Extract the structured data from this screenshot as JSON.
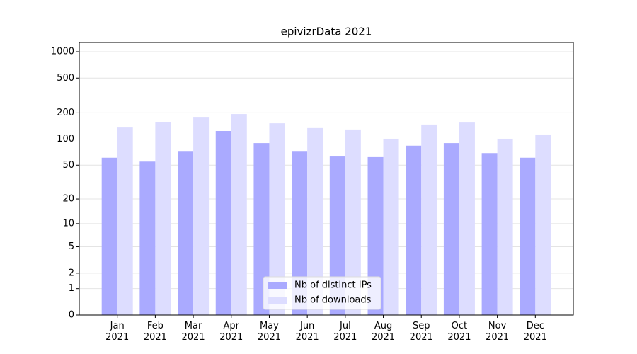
{
  "chart_data": {
    "type": "bar",
    "title": "epivizrData 2021",
    "categories": [
      "Jan\n2021",
      "Feb\n2021",
      "Mar\n2021",
      "Apr\n2021",
      "May\n2021",
      "Jun\n2021",
      "Jul\n2021",
      "Aug\n2021",
      "Sep\n2021",
      "Oct\n2021",
      "Nov\n2021",
      "Dec\n2021"
    ],
    "series": [
      {
        "name": "Nb of distinct IPs",
        "color": "#aaaaff",
        "values": [
          61,
          55,
          73,
          124,
          90,
          73,
          63,
          62,
          84,
          90,
          69,
          61
        ]
      },
      {
        "name": "Nb of downloads",
        "color": "#ddddff",
        "values": [
          136,
          158,
          180,
          194,
          152,
          134,
          129,
          101,
          147,
          155,
          101,
          113
        ]
      }
    ],
    "yscale": "log1p",
    "ylim": [
      0,
      1273
    ],
    "yticks": [
      0,
      1,
      2,
      5,
      10,
      20,
      50,
      100,
      200,
      500,
      1000
    ],
    "grid": true,
    "legend": "lower center"
  }
}
